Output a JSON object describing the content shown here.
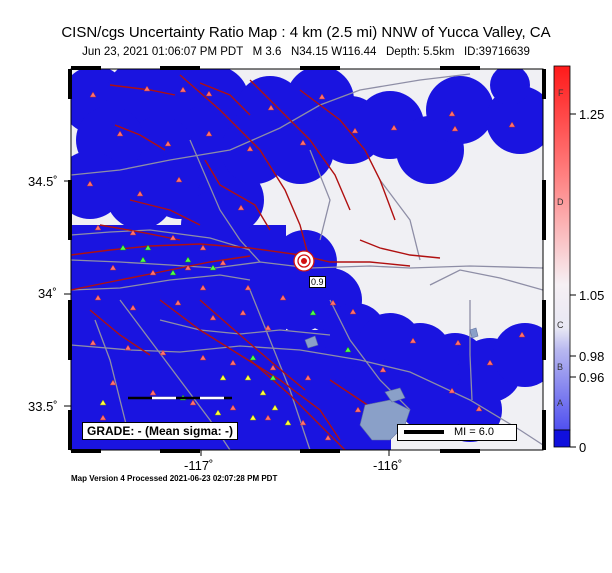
{
  "header": {
    "title": "CISN/cgs Uncertainty Ratio Map : 4 km (2.5 mi) NNW of Yucca Valley, CA",
    "subtitle": "Jun 23, 2021 01:06:07 PM PDT   M 3.6   N34.15 W116.44   Depth: 5.5km   ID:39716639"
  },
  "axes": {
    "y_labels": [
      "34.5˚",
      "34˚",
      "33.5˚"
    ],
    "x_labels": [
      "-117˚",
      "-116˚"
    ]
  },
  "grade_label": "GRADE: - (Mean sigma: -)",
  "scale_label": "MI = 6.0",
  "event_label": "0.9",
  "colorbar": {
    "ticks": [
      "1.25",
      "1.05",
      "0.98",
      "0.96",
      "0"
    ],
    "letters": [
      "F",
      "D",
      "C",
      "B",
      "A"
    ],
    "colors": {
      "top": "#ff2020",
      "mid": "#ffffff",
      "bottom": "#1010dd"
    }
  },
  "footer": "Map Version 4 Processed 2021-06-23 02:07:28 PM PDT",
  "colors": {
    "land": "#f0f0f4",
    "uncertainty": "#1a14e0",
    "fault": "#b01010",
    "road": "#8e8ea6",
    "water": "#8aa0c8"
  }
}
